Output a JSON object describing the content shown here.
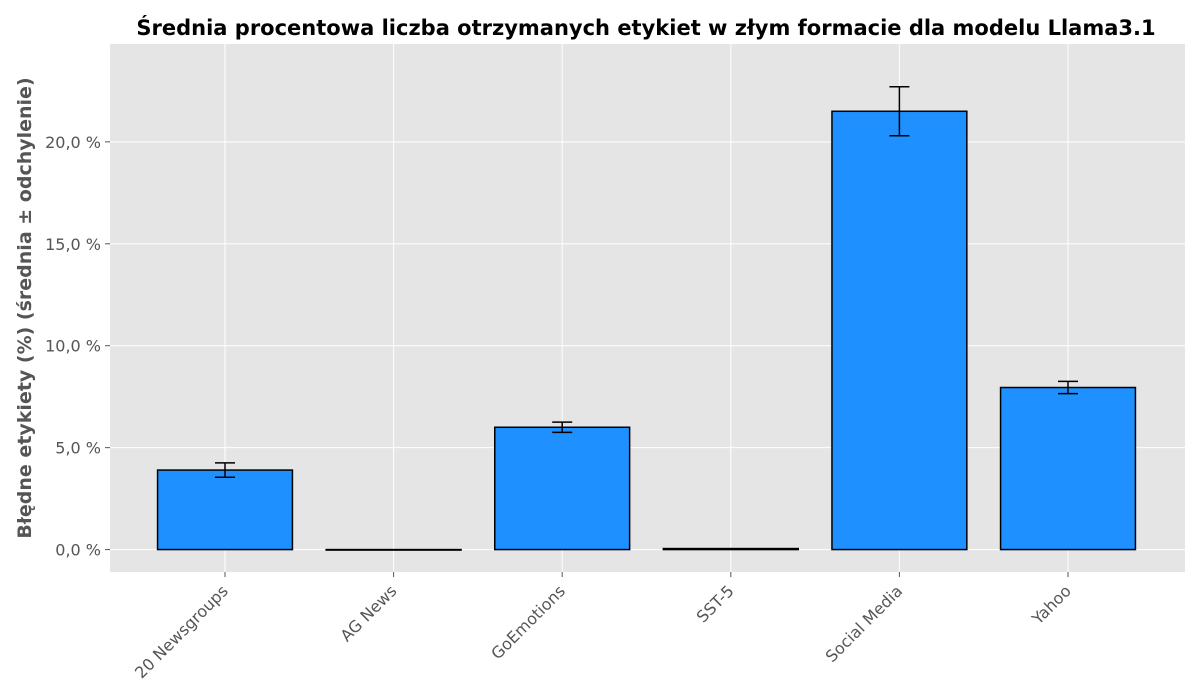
{
  "chart_data": {
    "type": "bar",
    "title": "Średnia procentowa liczba otrzymanych etykiet w złym formacie dla modelu Llama3.1",
    "xlabel": "",
    "ylabel": "Błędne etykiety (%) (średnia ± odchylenie)",
    "categories": [
      "20 Newsgroups",
      "AG News",
      "GoEmotions",
      "SST-5",
      "Social Media",
      "Yahoo"
    ],
    "values": [
      3.9,
      0.0,
      6.0,
      0.05,
      21.5,
      7.95
    ],
    "errors": [
      0.35,
      0.0,
      0.25,
      0.0,
      1.2,
      0.3
    ],
    "ylim": [
      -1.1,
      24.8
    ],
    "yticks": [
      0,
      5,
      10,
      15,
      20
    ],
    "ytick_labels": [
      "0,0 %",
      "5,0 %",
      "10,0 %",
      "15,0 %",
      "20,0 %"
    ],
    "grid": true,
    "bar_color": "#1e90ff",
    "edge_color": "#000000",
    "background_color": "#e5e5e5"
  }
}
